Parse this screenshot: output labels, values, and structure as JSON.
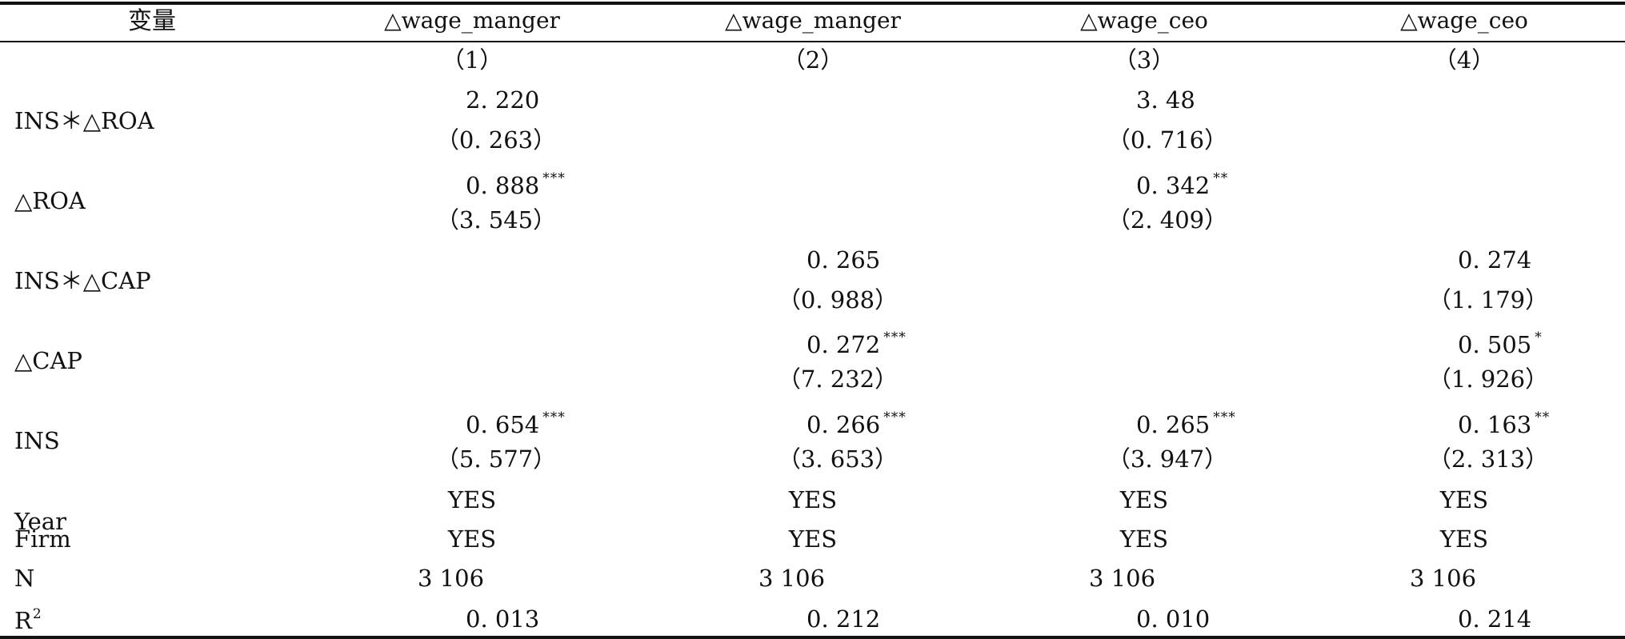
{
  "headers": {
    "variable": "变量",
    "col1": "△wage_manger",
    "col2": "△wage_manger",
    "col3": "△wage_ceo",
    "col4": "△wage_ceo"
  },
  "col_numbers": [
    "（1）",
    "（2）",
    "（3）",
    "（4）"
  ],
  "rows": {
    "ins_roa": {
      "label": "INS＊△ROA",
      "c1": "2. 220",
      "c1_t": "（0. 263）",
      "c3": "3. 48",
      "c3_t": "（0. 716）"
    },
    "roa": {
      "label": "△ROA",
      "c1": "0. 888",
      "c1_sig": "***",
      "c1_t": "（3. 545）",
      "c3": "0. 342",
      "c3_sig": "**",
      "c3_t": "（2. 409）"
    },
    "ins_cap": {
      "label": "INS＊△CAP",
      "c2": "0. 265",
      "c2_t": "（0. 988）",
      "c4": "0. 274",
      "c4_t": "（1. 179）"
    },
    "cap": {
      "label": "△CAP",
      "c2": "0. 272",
      "c2_sig": "***",
      "c2_t": "（7. 232）",
      "c4": "0. 505",
      "c4_sig": "*",
      "c4_t": "（1. 926）"
    },
    "ins": {
      "label": "INS",
      "c1": "0. 654",
      "c1_sig": "***",
      "c1_t": "（5. 577）",
      "c2": "0. 266",
      "c2_sig": "***",
      "c2_t": "（3. 653）",
      "c3": "0. 265",
      "c3_sig": "***",
      "c3_t": "（3. 947）",
      "c4": "0. 163",
      "c4_sig": "**",
      "c4_t": "（2. 313）"
    },
    "year": {
      "label": "Year",
      "values": [
        "YES",
        "YES",
        "YES",
        "YES"
      ]
    },
    "firm": {
      "label": "Firm",
      "values": [
        "YES",
        "YES",
        "YES",
        "YES"
      ]
    },
    "n": {
      "label": "N",
      "values": [
        "3 106",
        "3 106",
        "3 106",
        "3 106"
      ]
    },
    "r2": {
      "label": "R",
      "label_sup": "2",
      "values": [
        "0. 013",
        "0. 212",
        "0. 010",
        "0. 214"
      ]
    }
  }
}
